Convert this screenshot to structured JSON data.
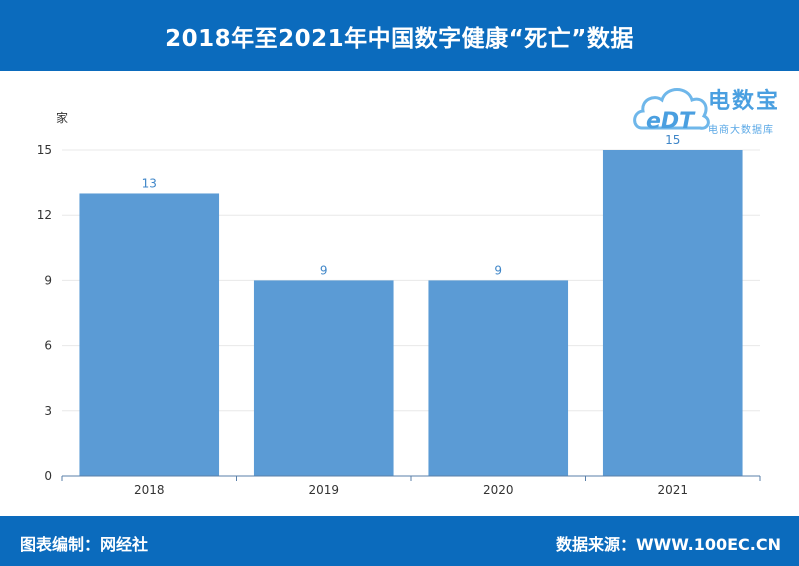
{
  "header": {
    "title": "2018年至2021年中国数字健康“死亡”数据"
  },
  "footer": {
    "left": "图表编制：网经社",
    "right": "数据来源：WWW.100EC.CN"
  },
  "logo": {
    "name": "电数宝",
    "subtitle": "电商大数据库",
    "mark": "eDT",
    "color": "#4a9fe0"
  },
  "chart_data": {
    "type": "bar",
    "ylabel": "家",
    "categories": [
      "2018",
      "2019",
      "2020",
      "2021"
    ],
    "values": [
      13,
      9,
      9,
      15
    ],
    "ylim": [
      0,
      15
    ],
    "yticks": [
      0,
      3,
      6,
      9,
      12,
      15
    ],
    "bar_color": "#5b9bd5",
    "label_color": "#3f86c8",
    "grid": true
  }
}
